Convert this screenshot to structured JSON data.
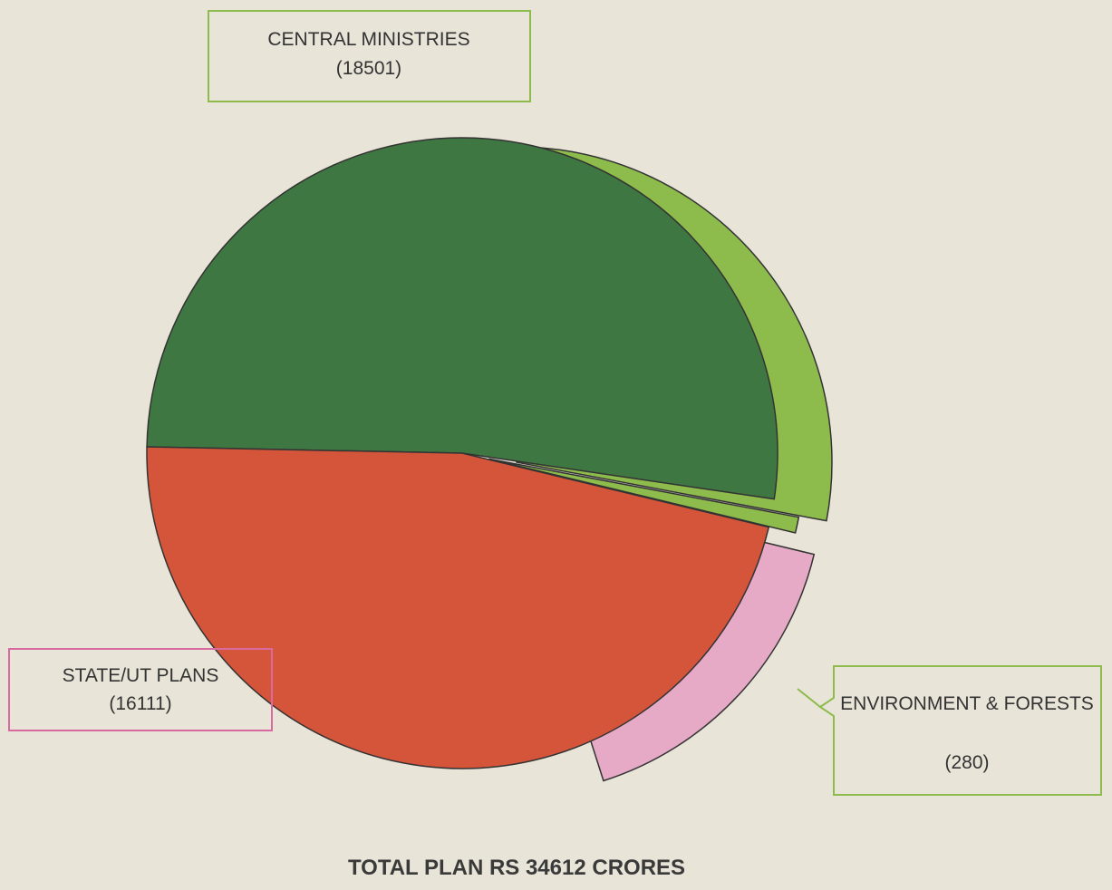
{
  "chart_data": {
    "type": "pie",
    "title": "TOTAL PLAN RS 34612 CRORES",
    "categories": [
      "CENTRAL MINISTRIES",
      "STATE/UT PLANS"
    ],
    "values": [
      18501,
      16111
    ],
    "value_labels": [
      "(18501)",
      "(16111)"
    ],
    "colors": [
      "#3f7742",
      "#d4553a"
    ],
    "detail": {
      "label": "ENVIRONMENT & FORESTS",
      "value": 280,
      "value_label": "(280)",
      "color": "#8dbb4c"
    }
  }
}
